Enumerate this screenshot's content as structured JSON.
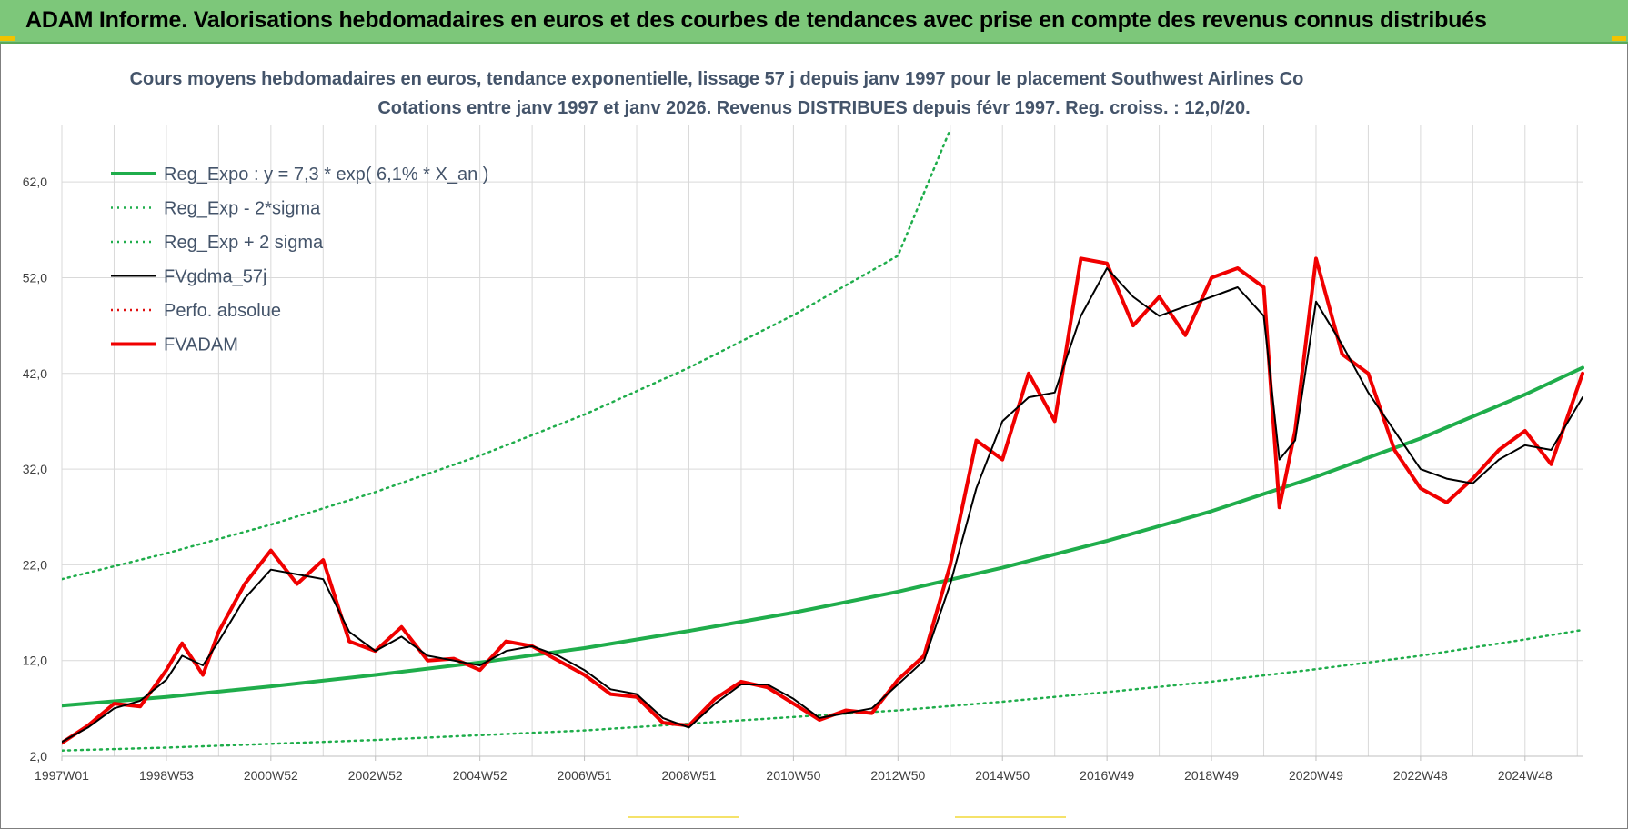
{
  "banner": {
    "title": "ADAM Informe. Valorisations hebdomadaires en euros et des courbes de tendances avec prise en compte des revenus connus distribués"
  },
  "colors": {
    "banner_bg": "#7dc77a",
    "reg_expo": "#1fad4b",
    "sigma_lines": "#1fad4b",
    "fvgdma": "#000000",
    "perfo": "#e01010",
    "fvadam": "#f00000",
    "grid": "#d9d9d9"
  },
  "chart_data": {
    "type": "line",
    "title": [
      "Cours moyens hebdomadaires en euros, tendance exponentielle, lissage 57 j depuis janv 1997  pour le placement Southwest Airlines Co",
      "Cotations entre janv 1997 et janv 2026. Revenus DISTRIBUES depuis févr 1997. Reg. croiss. : 12,0/20."
    ],
    "xlabel": "",
    "ylabel": "",
    "xlim": [
      1997.0,
      2026.1
    ],
    "ylim": [
      2,
      68
    ],
    "yticks": [
      2,
      12,
      22,
      32,
      42,
      52,
      62
    ],
    "ytick_labels": [
      "2,0",
      "12,0",
      "22,0",
      "32,0",
      "42,0",
      "52,0",
      "62,0"
    ],
    "xticks": [
      1997.0,
      1999.0,
      2001.0,
      2003.0,
      2005.0,
      2007.0,
      2009.0,
      2011.0,
      2013.0,
      2015.0,
      2017.0,
      2019.0,
      2021.0,
      2023.0,
      2025.0
    ],
    "xtick_labels": [
      "1997W01",
      "1998W53",
      "2000W52",
      "2002W52",
      "2004W52",
      "2006W51",
      "2008W51",
      "2010W50",
      "2012W50",
      "2014W50",
      "2016W49",
      "2018W49",
      "2020W49",
      "2022W48",
      "2024W48"
    ],
    "grid": true,
    "legend_position": "top-left",
    "series": [
      {
        "name": "Reg_Expo : y = 7,3 * exp( 6,1% *  X_an )",
        "style": "solid-thick",
        "color": "#1fad4b",
        "x": [
          1997.0,
          1999.0,
          2001.0,
          2003.0,
          2005.0,
          2007.0,
          2009.0,
          2011.0,
          2013.0,
          2015.0,
          2017.0,
          2019.0,
          2021.0,
          2023.0,
          2025.0,
          2026.1
        ],
        "y": [
          7.3,
          8.2,
          9.3,
          10.5,
          11.8,
          13.3,
          15.1,
          17.0,
          19.2,
          21.7,
          24.5,
          27.6,
          31.2,
          35.2,
          39.8,
          42.6
        ]
      },
      {
        "name": "Reg_Exp - 2*sigma",
        "style": "dotted",
        "color": "#1fad4b",
        "x": [
          1997.0,
          1999.0,
          2001.0,
          2003.0,
          2005.0,
          2007.0,
          2009.0,
          2011.0,
          2013.0,
          2015.0,
          2017.0,
          2019.0,
          2021.0,
          2023.0,
          2025.0,
          2026.1
        ],
        "y": [
          2.6,
          2.9,
          3.3,
          3.7,
          4.2,
          4.7,
          5.4,
          6.1,
          6.8,
          7.7,
          8.7,
          9.8,
          11.1,
          12.5,
          14.2,
          15.2
        ]
      },
      {
        "name": "Reg_Exp + 2 sigma",
        "style": "dotted",
        "color": "#1fad4b",
        "x": [
          1997.0,
          1999.0,
          2001.0,
          2003.0,
          2005.0,
          2007.0,
          2009.0,
          2011.0,
          2013.0,
          2014.0
        ],
        "y": [
          20.5,
          23.2,
          26.2,
          29.6,
          33.4,
          37.7,
          42.6,
          48.1,
          54.3,
          67.5
        ]
      },
      {
        "name": "FVgdma_57j",
        "style": "solid",
        "color": "#000000",
        "x": [
          1997.0,
          1997.5,
          1998.0,
          1998.5,
          1999.0,
          1999.3,
          1999.7,
          2000.0,
          2000.5,
          2001.0,
          2001.5,
          2002.0,
          2002.5,
          2003.0,
          2003.5,
          2004.0,
          2004.5,
          2005.0,
          2005.5,
          2006.0,
          2006.5,
          2007.0,
          2007.5,
          2008.0,
          2008.5,
          2009.0,
          2009.5,
          2010.0,
          2010.5,
          2011.0,
          2011.5,
          2012.0,
          2012.5,
          2013.0,
          2013.5,
          2014.0,
          2014.5,
          2015.0,
          2015.5,
          2016.0,
          2016.5,
          2017.0,
          2017.5,
          2018.0,
          2018.5,
          2019.0,
          2019.5,
          2020.0,
          2020.3,
          2020.6,
          2021.0,
          2021.5,
          2022.0,
          2022.5,
          2023.0,
          2023.5,
          2024.0,
          2024.5,
          2025.0,
          2025.5,
          2026.1
        ],
        "y": [
          3.5,
          5.0,
          7.0,
          7.8,
          10.0,
          12.5,
          11.5,
          14.0,
          18.5,
          21.5,
          21.0,
          20.5,
          15.0,
          13.0,
          14.5,
          12.5,
          12.0,
          11.5,
          13.0,
          13.5,
          12.5,
          11.0,
          9.0,
          8.5,
          6.0,
          5.0,
          7.5,
          9.5,
          9.5,
          8.0,
          6.0,
          6.5,
          7.0,
          9.5,
          12.0,
          20.0,
          30.0,
          37.0,
          39.5,
          40.0,
          48.0,
          53.0,
          50.0,
          48.0,
          49.0,
          50.0,
          51.0,
          48.0,
          33.0,
          35.0,
          49.5,
          45.0,
          40.0,
          36.0,
          32.0,
          31.0,
          30.5,
          33.0,
          34.5,
          34.0,
          39.5
        ]
      },
      {
        "name": "Perfo. absolue",
        "style": "dotted",
        "color": "#e01010",
        "x": [
          1997.0,
          1997.5,
          1998.0,
          1998.5,
          1999.0,
          1999.3,
          1999.7,
          2000.0,
          2000.5,
          2001.0,
          2001.5,
          2002.0,
          2002.5,
          2003.0,
          2003.5,
          2004.0,
          2004.5,
          2005.0,
          2005.5,
          2006.0,
          2006.5,
          2007.0,
          2007.5,
          2008.0,
          2008.5,
          2009.0,
          2009.5,
          2010.0,
          2010.5,
          2011.0,
          2011.5,
          2012.0,
          2012.5,
          2013.0,
          2013.5,
          2014.0,
          2014.5,
          2015.0,
          2015.5,
          2016.0,
          2016.5,
          2017.0,
          2017.5,
          2018.0,
          2018.5,
          2019.0,
          2019.5,
          2020.0,
          2020.3,
          2020.6,
          2021.0,
          2021.5,
          2022.0,
          2022.5,
          2023.0,
          2023.5,
          2024.0,
          2024.5,
          2025.0,
          2025.5,
          2026.1
        ],
        "y": [
          3.4,
          5.2,
          7.5,
          7.2,
          11.0,
          13.8,
          10.5,
          15.0,
          20.0,
          23.5,
          20.0,
          22.5,
          14.0,
          13.0,
          15.5,
          12.0,
          12.2,
          11.0,
          14.0,
          13.5,
          12.0,
          10.5,
          8.5,
          8.2,
          5.5,
          5.2,
          8.0,
          9.8,
          9.2,
          7.5,
          5.8,
          6.8,
          6.5,
          10.0,
          12.5,
          22.0,
          35.0,
          33.0,
          42.0,
          37.0,
          54.0,
          53.5,
          47.0,
          50.0,
          46.0,
          52.0,
          53.0,
          51.0,
          28.0,
          36.0,
          54.0,
          44.0,
          42.0,
          34.0,
          30.0,
          28.5,
          31.0,
          34.0,
          36.0,
          32.5,
          42.0
        ]
      },
      {
        "name": "FVADAM",
        "style": "solid-thick",
        "color": "#f00000",
        "x": [
          1997.0,
          1997.5,
          1998.0,
          1998.5,
          1999.0,
          1999.3,
          1999.7,
          2000.0,
          2000.5,
          2001.0,
          2001.5,
          2002.0,
          2002.5,
          2003.0,
          2003.5,
          2004.0,
          2004.5,
          2005.0,
          2005.5,
          2006.0,
          2006.5,
          2007.0,
          2007.5,
          2008.0,
          2008.5,
          2009.0,
          2009.5,
          2010.0,
          2010.5,
          2011.0,
          2011.5,
          2012.0,
          2012.5,
          2013.0,
          2013.5,
          2014.0,
          2014.5,
          2015.0,
          2015.5,
          2016.0,
          2016.5,
          2017.0,
          2017.5,
          2018.0,
          2018.5,
          2019.0,
          2019.5,
          2020.0,
          2020.3,
          2020.6,
          2021.0,
          2021.5,
          2022.0,
          2022.5,
          2023.0,
          2023.5,
          2024.0,
          2024.5,
          2025.0,
          2025.5,
          2026.1
        ],
        "y": [
          3.4,
          5.2,
          7.5,
          7.2,
          11.0,
          13.8,
          10.5,
          15.0,
          20.0,
          23.5,
          20.0,
          22.5,
          14.0,
          13.0,
          15.5,
          12.0,
          12.2,
          11.0,
          14.0,
          13.5,
          12.0,
          10.5,
          8.5,
          8.2,
          5.5,
          5.2,
          8.0,
          9.8,
          9.2,
          7.5,
          5.8,
          6.8,
          6.5,
          10.0,
          12.5,
          22.0,
          35.0,
          33.0,
          42.0,
          37.0,
          54.0,
          53.5,
          47.0,
          50.0,
          46.0,
          52.0,
          53.0,
          51.0,
          28.0,
          36.0,
          54.0,
          44.0,
          42.0,
          34.0,
          30.0,
          28.5,
          31.0,
          34.0,
          36.0,
          32.5,
          42.0
        ]
      }
    ]
  }
}
